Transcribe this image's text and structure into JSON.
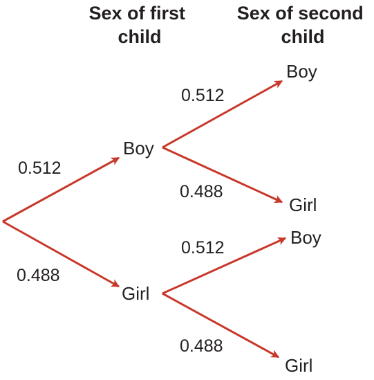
{
  "headers": {
    "first_child": [
      "Sex of first",
      "child"
    ],
    "second_child": [
      "Sex of second",
      "child"
    ]
  },
  "colors": {
    "branch": "#c8382a",
    "text": "#231f20"
  },
  "first_level": [
    {
      "outcome": "Boy",
      "probability": "0.512",
      "second_level": [
        {
          "outcome": "Boy",
          "probability": "0.512"
        },
        {
          "outcome": "Girl",
          "probability": "0.488"
        }
      ]
    },
    {
      "outcome": "Girl",
      "probability": "0.488",
      "second_level": [
        {
          "outcome": "Boy",
          "probability": "0.512"
        },
        {
          "outcome": "Girl",
          "probability": "0.488"
        }
      ]
    }
  ]
}
